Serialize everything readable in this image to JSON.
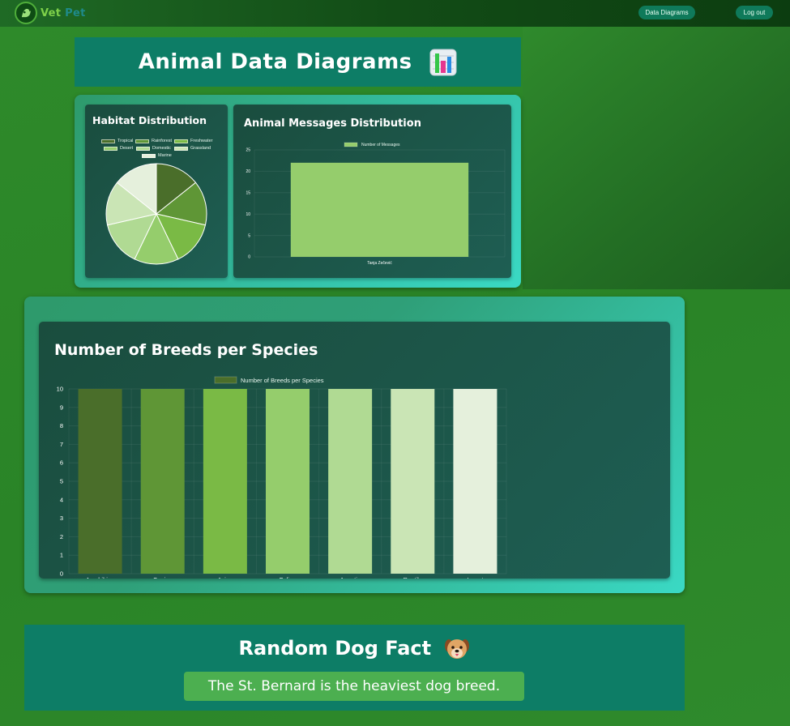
{
  "app": {
    "brand_part1": "Vet",
    "brand_part2": "Pet",
    "nav": {
      "diagrams_label": "Data Diagrams",
      "logout_label": "Log out"
    }
  },
  "page": {
    "title": "Animal Data Diagrams",
    "title_icon": "bar-chart-emoji-icon"
  },
  "colors": {
    "accent_teal": "#0d7d66",
    "panel_dark": "#1a4d3e",
    "greens": [
      "#4a6e2a",
      "#5f9636",
      "#7aba45",
      "#95cd6c",
      "#b0da93",
      "#cae5b5",
      "#e5f0dc"
    ]
  },
  "chart_data": [
    {
      "type": "pie",
      "title": "Habitat Distribution",
      "labels": [
        "Tropical",
        "Rainforest",
        "Freshwater",
        "Desert",
        "Domestic",
        "Grassland",
        "Marine"
      ],
      "values": [
        1,
        1,
        1,
        1,
        1,
        1,
        1
      ],
      "colors": [
        "#4a6e2a",
        "#5f9636",
        "#7aba45",
        "#95cd6c",
        "#b0da93",
        "#cae5b5",
        "#e5f0dc"
      ],
      "legend": "top"
    },
    {
      "type": "bar",
      "title": "Animal Messages Distribution",
      "categories": [
        "Tanja Zečević"
      ],
      "series": [
        {
          "name": "Number of Messages",
          "values": [
            22
          ]
        }
      ],
      "yticks": [
        "0",
        "5",
        "10",
        "15",
        "20",
        "25"
      ],
      "ylim": [
        0,
        25
      ],
      "color": "#95cd6c",
      "grid": true,
      "legend": "top"
    },
    {
      "type": "bar",
      "title": "Number of Breeds per Species",
      "categories": [
        "Amphibian",
        "Canine",
        "Avian",
        "Feline",
        "Aquatic",
        "Reptile",
        "Insect"
      ],
      "series": [
        {
          "name": "Number of Breeds per Species",
          "values": [
            10,
            10,
            10,
            10,
            10,
            10,
            10
          ]
        }
      ],
      "yticks": [
        "0",
        "1",
        "2",
        "3",
        "4",
        "5",
        "6",
        "7",
        "8",
        "9",
        "10"
      ],
      "ylim": [
        0,
        10
      ],
      "colors": [
        "#4a6e2a",
        "#5f9636",
        "#7aba45",
        "#95cd6c",
        "#b0da93",
        "#cae5b5",
        "#e5f0dc"
      ],
      "grid": true,
      "legend": "top"
    }
  ],
  "fact": {
    "title": "Random Dog Fact",
    "title_icon": "dog-face-emoji-icon",
    "text": "The St. Bernard is the heaviest dog breed."
  }
}
